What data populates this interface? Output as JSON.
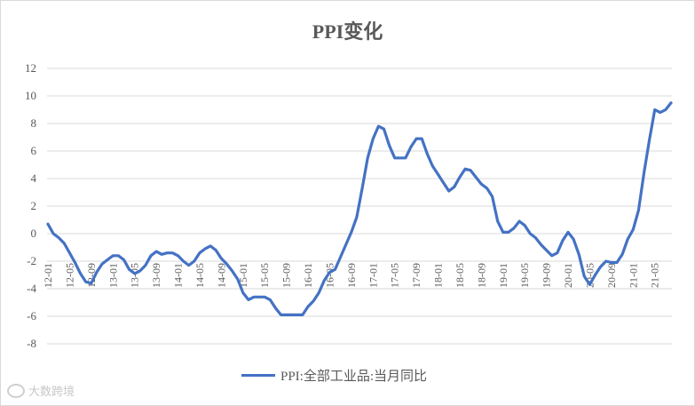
{
  "chart_data": {
    "type": "line",
    "title": "PPI变化",
    "xlabel": "",
    "ylabel": "",
    "ylim": [
      -8,
      12
    ],
    "yticks": [
      -8,
      -6,
      -4,
      -2,
      0,
      2,
      4,
      6,
      8,
      10,
      12
    ],
    "grid": "horizontal",
    "legend_position": "bottom",
    "x_tick_labels": [
      "12-01",
      "12-05",
      "12-09",
      "13-01",
      "13-05",
      "13-09",
      "14-01",
      "14-05",
      "14-09",
      "15-01",
      "15-05",
      "15-09",
      "16-01",
      "16-05",
      "16-09",
      "17-01",
      "17-05",
      "17-09",
      "18-01",
      "18-05",
      "18-09",
      "19-01",
      "19-05",
      "19-09",
      "20-01",
      "20-05",
      "20-09",
      "21-01",
      "21-05"
    ],
    "series": [
      {
        "name": "PPI:全部工业品:当月同比",
        "color": "#4472c4",
        "start": "12-01",
        "values": [
          0.7,
          0.0,
          -0.3,
          -0.7,
          -1.4,
          -2.1,
          -2.9,
          -3.5,
          -3.6,
          -2.8,
          -2.2,
          -1.9,
          -1.6,
          -1.6,
          -1.9,
          -2.6,
          -2.9,
          -2.7,
          -2.3,
          -1.6,
          -1.3,
          -1.5,
          -1.4,
          -1.4,
          -1.6,
          -2.0,
          -2.3,
          -2.0,
          -1.4,
          -1.1,
          -0.9,
          -1.2,
          -1.8,
          -2.2,
          -2.7,
          -3.3,
          -4.3,
          -4.8,
          -4.6,
          -4.6,
          -4.6,
          -4.8,
          -5.4,
          -5.9,
          -5.9,
          -5.9,
          -5.9,
          -5.9,
          -5.3,
          -4.9,
          -4.3,
          -3.4,
          -2.8,
          -2.6,
          -1.7,
          -0.8,
          0.1,
          1.2,
          3.3,
          5.5,
          6.9,
          7.8,
          7.6,
          6.4,
          5.5,
          5.5,
          5.5,
          6.3,
          6.9,
          6.9,
          5.8,
          4.9,
          4.3,
          3.7,
          3.1,
          3.4,
          4.1,
          4.7,
          4.6,
          4.1,
          3.6,
          3.3,
          2.7,
          0.9,
          0.1,
          0.1,
          0.4,
          0.9,
          0.6,
          0.0,
          -0.3,
          -0.8,
          -1.2,
          -1.6,
          -1.4,
          -0.5,
          0.1,
          -0.4,
          -1.5,
          -3.1,
          -3.7,
          -3.0,
          -2.4,
          -2.0,
          -2.1,
          -2.1,
          -1.5,
          -0.4,
          0.3,
          1.7,
          4.4,
          6.8,
          9.0,
          8.8,
          9.0,
          9.5
        ]
      }
    ]
  },
  "legend": {
    "label": "PPI:全部工业品:当月同比"
  },
  "watermark": {
    "text": "大数跨境"
  }
}
